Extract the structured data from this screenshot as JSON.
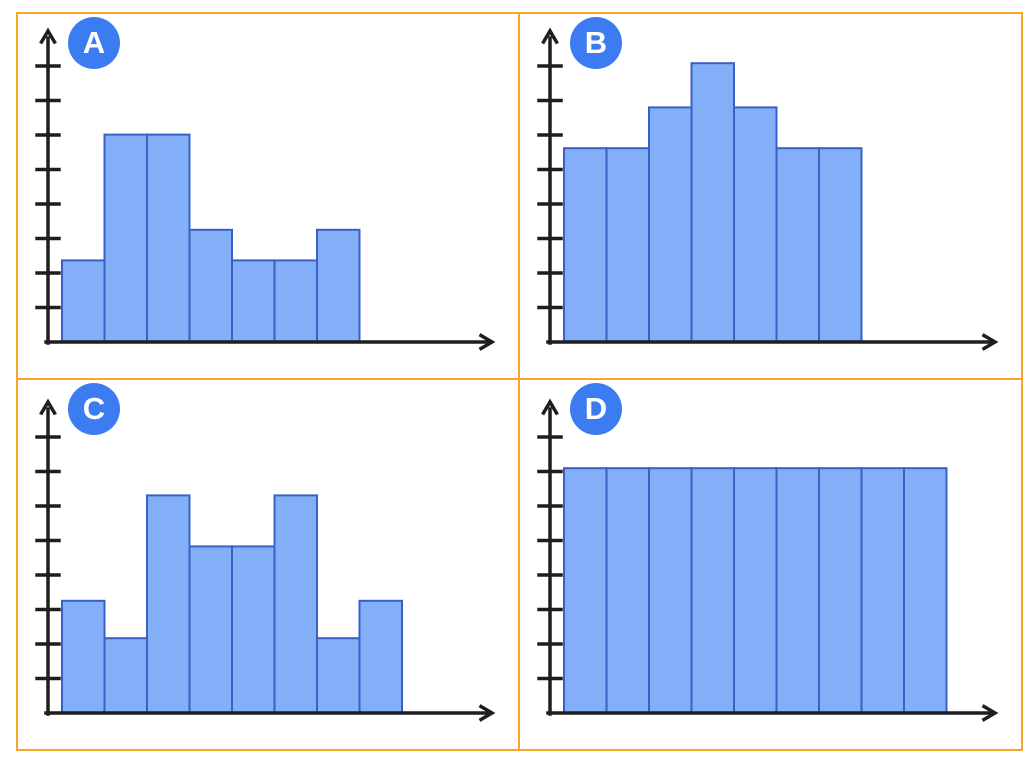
{
  "page": {
    "background": "#ffffff",
    "frame_color": "#F9A62B",
    "visible_text": [
      "A",
      "B",
      "C",
      "D"
    ]
  },
  "colors": {
    "bar_fill": "#82AFF8",
    "bar_stroke": "#3A60C8",
    "axis": "#1E1E1E",
    "badge_bg": "#3B7DF0",
    "badge_text": "#ffffff",
    "frame": "#F9A62B"
  },
  "chart_data": [
    {
      "type": "bar",
      "title": "A",
      "subtype": "histogram",
      "categories": [
        "bin 1",
        "bin 2",
        "bin 3",
        "bin 4",
        "bin 5",
        "bin 6",
        "bin 7"
      ],
      "values": [
        2.4,
        6.1,
        6.1,
        3.3,
        2.4,
        2.4,
        3.3
      ],
      "xlabel": "",
      "ylabel": "",
      "ylim": [
        0,
        9
      ],
      "y_tick_count": 8,
      "tick_labels": "none",
      "grid": false,
      "bar_gap": 0,
      "legend": "none",
      "distribution_hint": "unimodal, peak at bins 2-3, long right tail"
    },
    {
      "type": "bar",
      "title": "B",
      "subtype": "histogram",
      "categories": [
        "bin 1",
        "bin 2",
        "bin 3",
        "bin 4",
        "bin 5",
        "bin 6",
        "bin 7"
      ],
      "values": [
        5.7,
        5.7,
        6.9,
        8.2,
        6.9,
        5.7,
        5.7
      ],
      "xlabel": "",
      "ylabel": "",
      "ylim": [
        0,
        9
      ],
      "y_tick_count": 8,
      "tick_labels": "none",
      "grid": false,
      "bar_gap": 0,
      "legend": "none",
      "distribution_hint": "symmetric, bell-shaped, peak at center bin"
    },
    {
      "type": "bar",
      "title": "C",
      "subtype": "histogram",
      "categories": [
        "bin 1",
        "bin 2",
        "bin 3",
        "bin 4",
        "bin 5",
        "bin 6",
        "bin 7",
        "bin 8"
      ],
      "values": [
        3.3,
        2.2,
        6.4,
        4.9,
        4.9,
        6.4,
        2.2,
        3.3
      ],
      "xlabel": "",
      "ylabel": "",
      "ylim": [
        0,
        9
      ],
      "y_tick_count": 8,
      "tick_labels": "none",
      "grid": false,
      "bar_gap": 0,
      "legend": "none",
      "distribution_hint": "symmetric, bimodal with peaks at bins 3 and 6"
    },
    {
      "type": "bar",
      "title": "D",
      "subtype": "histogram",
      "categories": [
        "bin 1",
        "bin 2",
        "bin 3",
        "bin 4",
        "bin 5",
        "bin 6",
        "bin 7",
        "bin 8",
        "bin 9"
      ],
      "values": [
        7.2,
        7.2,
        7.2,
        7.2,
        7.2,
        7.2,
        7.2,
        7.2,
        7.2
      ],
      "xlabel": "",
      "ylabel": "",
      "ylim": [
        0,
        9
      ],
      "y_tick_count": 8,
      "tick_labels": "none",
      "grid": false,
      "bar_gap": 0,
      "legend": "none",
      "distribution_hint": "uniform, all bars equal height"
    }
  ]
}
